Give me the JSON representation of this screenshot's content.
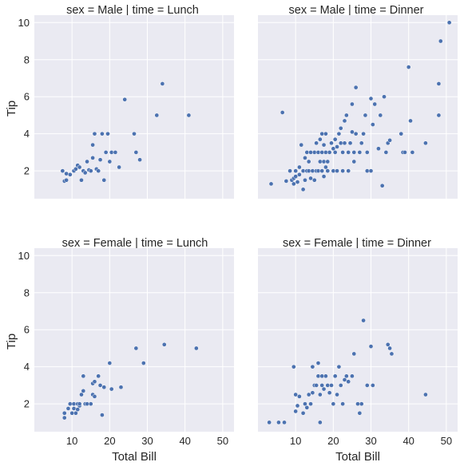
{
  "chart_data": {
    "type": "scatter",
    "marker_color": "#4c72b0",
    "background_color": "#eaeaf2",
    "grid": true,
    "xlim": [
      0,
      53
    ],
    "ylim": [
      0.5,
      10.4
    ],
    "xticks": [
      10,
      20,
      30,
      40,
      50
    ],
    "yticks": [
      2,
      4,
      6,
      8,
      10
    ],
    "xlabel": "Total Bill",
    "ylabel": "Tip",
    "panels": [
      {
        "title": "sex = Male | time = Lunch",
        "points": [
          [
            7.5,
            2.0
          ],
          [
            8.0,
            1.45
          ],
          [
            8.5,
            1.5
          ],
          [
            8.5,
            1.85
          ],
          [
            9.5,
            1.8
          ],
          [
            10.5,
            2.0
          ],
          [
            11.0,
            2.1
          ],
          [
            11.5,
            2.3
          ],
          [
            12.0,
            2.2
          ],
          [
            12.5,
            1.5
          ],
          [
            13.0,
            2.0
          ],
          [
            13.5,
            1.9
          ],
          [
            14.0,
            2.5
          ],
          [
            14.5,
            2.05
          ],
          [
            15.0,
            2.0
          ],
          [
            15.5,
            2.7
          ],
          [
            15.5,
            3.4
          ],
          [
            16.0,
            4.0
          ],
          [
            16.5,
            2.1
          ],
          [
            17.0,
            2.0
          ],
          [
            17.5,
            2.6
          ],
          [
            18.0,
            4.0
          ],
          [
            18.5,
            1.5
          ],
          [
            19.0,
            3.0
          ],
          [
            19.5,
            4.0
          ],
          [
            20.0,
            2.5
          ],
          [
            20.5,
            3.0
          ],
          [
            21.5,
            3.0
          ],
          [
            22.5,
            2.2
          ],
          [
            24.0,
            5.85
          ],
          [
            26.5,
            4.0
          ],
          [
            27.0,
            3.0
          ],
          [
            28.0,
            2.6
          ],
          [
            32.5,
            5.0
          ],
          [
            34.0,
            6.7
          ],
          [
            41.0,
            5.0
          ]
        ]
      },
      {
        "title": "sex = Male | time = Dinner",
        "points": [
          [
            3.5,
            1.3
          ],
          [
            6.5,
            5.15
          ],
          [
            7.5,
            1.45
          ],
          [
            8.5,
            2.0
          ],
          [
            9.0,
            1.5
          ],
          [
            9.5,
            1.3
          ],
          [
            9.5,
            1.6
          ],
          [
            10.0,
            1.7
          ],
          [
            10.0,
            2.0
          ],
          [
            10.5,
            1.4
          ],
          [
            11.0,
            1.8
          ],
          [
            11.0,
            2.2
          ],
          [
            11.5,
            3.4
          ],
          [
            12.0,
            1.0
          ],
          [
            12.0,
            2.0
          ],
          [
            12.5,
            1.5
          ],
          [
            12.5,
            2.7
          ],
          [
            13.0,
            2.0
          ],
          [
            13.0,
            3.0
          ],
          [
            13.5,
            2.0
          ],
          [
            13.5,
            2.5
          ],
          [
            14.0,
            1.6
          ],
          [
            14.0,
            3.0
          ],
          [
            14.5,
            2.0
          ],
          [
            15.0,
            1.5
          ],
          [
            15.0,
            3.0
          ],
          [
            15.5,
            2.0
          ],
          [
            15.5,
            3.5
          ],
          [
            16.0,
            2.0
          ],
          [
            16.0,
            3.0
          ],
          [
            16.5,
            2.5
          ],
          [
            16.5,
            3.7
          ],
          [
            17.0,
            2.0
          ],
          [
            17.0,
            3.0
          ],
          [
            17.0,
            4.0
          ],
          [
            17.5,
            1.7
          ],
          [
            17.5,
            2.5
          ],
          [
            17.5,
            3.4
          ],
          [
            18.0,
            2.2
          ],
          [
            18.0,
            3.0
          ],
          [
            18.0,
            4.0
          ],
          [
            18.5,
            2.0
          ],
          [
            18.5,
            2.5
          ],
          [
            19.0,
            3.0
          ],
          [
            19.5,
            3.5
          ],
          [
            20.0,
            2.0
          ],
          [
            20.0,
            3.2
          ],
          [
            20.5,
            3.0
          ],
          [
            20.5,
            3.7
          ],
          [
            21.0,
            2.0
          ],
          [
            21.0,
            3.3
          ],
          [
            21.5,
            4.0
          ],
          [
            22.0,
            3.5
          ],
          [
            22.0,
            4.3
          ],
          [
            22.5,
            2.0
          ],
          [
            22.5,
            3.0
          ],
          [
            23.0,
            3.5
          ],
          [
            23.0,
            4.7
          ],
          [
            23.5,
            5.0
          ],
          [
            24.0,
            2.0
          ],
          [
            24.0,
            3.0
          ],
          [
            24.5,
            3.5
          ],
          [
            25.0,
            5.6
          ],
          [
            25.0,
            4.1
          ],
          [
            25.5,
            2.5
          ],
          [
            25.5,
            3.0
          ],
          [
            26.0,
            4.0
          ],
          [
            26.0,
            6.5
          ],
          [
            27.0,
            3.0
          ],
          [
            27.5,
            3.5
          ],
          [
            28.0,
            4.0
          ],
          [
            28.5,
            5.0
          ],
          [
            29.0,
            2.0
          ],
          [
            29.0,
            3.0
          ],
          [
            30.0,
            2.0
          ],
          [
            30.0,
            5.9
          ],
          [
            30.5,
            4.5
          ],
          [
            31.0,
            5.6
          ],
          [
            32.0,
            3.2
          ],
          [
            32.5,
            5.0
          ],
          [
            33.0,
            1.2
          ],
          [
            33.5,
            6.0
          ],
          [
            34.0,
            3.0
          ],
          [
            34.5,
            3.5
          ],
          [
            35.0,
            3.65
          ],
          [
            38.0,
            4.0
          ],
          [
            38.5,
            3.0
          ],
          [
            39.0,
            3.0
          ],
          [
            40.0,
            7.6
          ],
          [
            40.5,
            4.7
          ],
          [
            41.0,
            3.0
          ],
          [
            44.5,
            3.5
          ],
          [
            48.0,
            6.7
          ],
          [
            48.0,
            5.0
          ],
          [
            48.5,
            9.0
          ],
          [
            50.8,
            10.0
          ]
        ]
      },
      {
        "title": "sex = Female | time = Lunch",
        "points": [
          [
            8.0,
            1.5
          ],
          [
            8.0,
            1.25
          ],
          [
            9.0,
            1.75
          ],
          [
            9.5,
            2.0
          ],
          [
            10.0,
            1.5
          ],
          [
            10.5,
            1.75
          ],
          [
            10.5,
            2.0
          ],
          [
            11.0,
            1.5
          ],
          [
            11.5,
            1.7
          ],
          [
            11.5,
            2.0
          ],
          [
            12.0,
            1.9
          ],
          [
            12.0,
            2.0
          ],
          [
            12.5,
            2.5
          ],
          [
            13.0,
            2.7
          ],
          [
            13.0,
            3.5
          ],
          [
            13.5,
            2.0
          ],
          [
            14.0,
            2.0
          ],
          [
            15.0,
            2.0
          ],
          [
            15.5,
            2.5
          ],
          [
            15.5,
            3.1
          ],
          [
            16.0,
            2.4
          ],
          [
            16.0,
            3.2
          ],
          [
            17.0,
            3.5
          ],
          [
            17.5,
            3.0
          ],
          [
            18.0,
            1.4
          ],
          [
            18.5,
            2.9
          ],
          [
            20.0,
            4.2
          ],
          [
            20.5,
            2.8
          ],
          [
            23.0,
            2.9
          ],
          [
            27.0,
            5.0
          ],
          [
            29.0,
            4.2
          ],
          [
            34.5,
            5.2
          ],
          [
            43.0,
            5.0
          ]
        ]
      },
      {
        "title": "sex = Female | time = Dinner",
        "points": [
          [
            3.0,
            1.0
          ],
          [
            5.5,
            1.0
          ],
          [
            7.0,
            1.0
          ],
          [
            9.5,
            4.0
          ],
          [
            10.0,
            1.6
          ],
          [
            10.0,
            2.5
          ],
          [
            10.5,
            1.9
          ],
          [
            11.0,
            2.4
          ],
          [
            12.0,
            1.5
          ],
          [
            12.5,
            2.0
          ],
          [
            13.0,
            1.8
          ],
          [
            13.5,
            2.5
          ],
          [
            14.0,
            2.0
          ],
          [
            14.5,
            2.6
          ],
          [
            14.5,
            4.0
          ],
          [
            15.0,
            3.0
          ],
          [
            15.5,
            3.0
          ],
          [
            16.0,
            3.5
          ],
          [
            16.0,
            4.2
          ],
          [
            16.5,
            1.0
          ],
          [
            16.5,
            2.5
          ],
          [
            17.0,
            3.0
          ],
          [
            17.0,
            3.5
          ],
          [
            17.5,
            2.8
          ],
          [
            18.0,
            3.5
          ],
          [
            18.5,
            3.0
          ],
          [
            19.0,
            2.6
          ],
          [
            19.5,
            3.0
          ],
          [
            20.0,
            2.0
          ],
          [
            20.5,
            3.5
          ],
          [
            21.0,
            2.5
          ],
          [
            21.5,
            4.0
          ],
          [
            22.0,
            3.0
          ],
          [
            22.5,
            2.0
          ],
          [
            23.0,
            3.3
          ],
          [
            23.5,
            3.5
          ],
          [
            24.0,
            3.2
          ],
          [
            25.0,
            3.5
          ],
          [
            25.5,
            4.7
          ],
          [
            26.5,
            2.0
          ],
          [
            27.0,
            1.5
          ],
          [
            27.5,
            2.0
          ],
          [
            28.0,
            6.5
          ],
          [
            29.0,
            3.0
          ],
          [
            30.0,
            5.1
          ],
          [
            30.5,
            3.0
          ],
          [
            34.5,
            5.2
          ],
          [
            35.0,
            5.0
          ],
          [
            35.5,
            4.7
          ],
          [
            44.5,
            2.5
          ]
        ]
      }
    ]
  }
}
